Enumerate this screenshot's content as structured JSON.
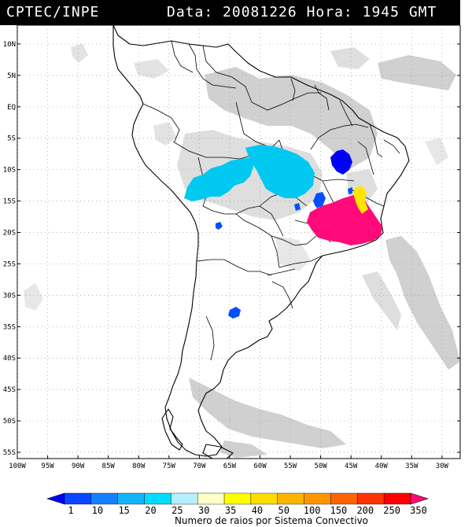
{
  "header": {
    "institution": "CPTEC/INPE",
    "data_label": "Data:",
    "date": "20081226",
    "hora_label": "Hora:",
    "time": "1945",
    "tz": "GMT"
  },
  "map": {
    "lon_range": [
      -100,
      -27
    ],
    "lat_range": [
      -56,
      13
    ],
    "lat_ticks": [
      {
        "value": 10,
        "label": "10N"
      },
      {
        "value": 5,
        "label": "5N"
      },
      {
        "value": 0,
        "label": "EQ"
      },
      {
        "value": -5,
        "label": "5S"
      },
      {
        "value": -10,
        "label": "10S"
      },
      {
        "value": -15,
        "label": "15S"
      },
      {
        "value": -20,
        "label": "20S"
      },
      {
        "value": -25,
        "label": "25S"
      },
      {
        "value": -30,
        "label": "30S"
      },
      {
        "value": -35,
        "label": "35S"
      },
      {
        "value": -40,
        "label": "40S"
      },
      {
        "value": -45,
        "label": "45S"
      },
      {
        "value": -50,
        "label": "50S"
      },
      {
        "value": -55,
        "label": "55S"
      }
    ],
    "lon_ticks": [
      {
        "value": -100,
        "label": "100W"
      },
      {
        "value": -95,
        "label": "95W"
      },
      {
        "value": -90,
        "label": "90W"
      },
      {
        "value": -85,
        "label": "85W"
      },
      {
        "value": -80,
        "label": "80W"
      },
      {
        "value": -75,
        "label": "75W"
      },
      {
        "value": -70,
        "label": "70W"
      },
      {
        "value": -65,
        "label": "65W"
      },
      {
        "value": -60,
        "label": "60W"
      },
      {
        "value": -55,
        "label": "55W"
      },
      {
        "value": -50,
        "label": "50W"
      },
      {
        "value": -45,
        "label": "45W"
      },
      {
        "value": -40,
        "label": "40W"
      },
      {
        "value": -35,
        "label": "35W"
      },
      {
        "value": -30,
        "label": "30W"
      }
    ],
    "grid": "dotted",
    "cloud_color": "#c8c8c8",
    "coast_color": "#000000",
    "systems": [
      {
        "id": "amazon-west",
        "color": "#00c8f0",
        "lon": -66,
        "lat": -12
      },
      {
        "id": "amazon-east",
        "color": "#00c8f0",
        "lon": -56,
        "lat": -10
      },
      {
        "id": "bahia-north",
        "color": "#0000ff",
        "lon": -45.5,
        "lat": -9.5
      },
      {
        "id": "southeast",
        "color": "#ff0a78",
        "lon": -43,
        "lat": -19
      },
      {
        "id": "minas-yellow",
        "color": "#ffe600",
        "lon": -42.5,
        "lat": -15.5
      },
      {
        "id": "goias-blue",
        "color": "#0050ff",
        "lon": -51.5,
        "lat": -16
      },
      {
        "id": "bolivia-dot",
        "color": "#0050ff",
        "lon": -67,
        "lat": -19
      },
      {
        "id": "argentina-blob",
        "color": "#0050ff",
        "lon": -65.5,
        "lat": -33
      }
    ]
  },
  "legend": {
    "title": "Numero de raios por Sistema Convectivo",
    "values": [
      "1",
      "10",
      "15",
      "20",
      "25",
      "30",
      "35",
      "40",
      "50",
      "100",
      "150",
      "200",
      "250",
      "350"
    ],
    "colors": [
      "#0000ff",
      "#0a46ff",
      "#1482ff",
      "#14b4ff",
      "#00dcff",
      "#b4f0ff",
      "#ffffc8",
      "#ffff00",
      "#ffdc00",
      "#ffb400",
      "#ff9600",
      "#ff6400",
      "#ff3200",
      "#ff0000",
      "#ff0a78"
    ]
  }
}
